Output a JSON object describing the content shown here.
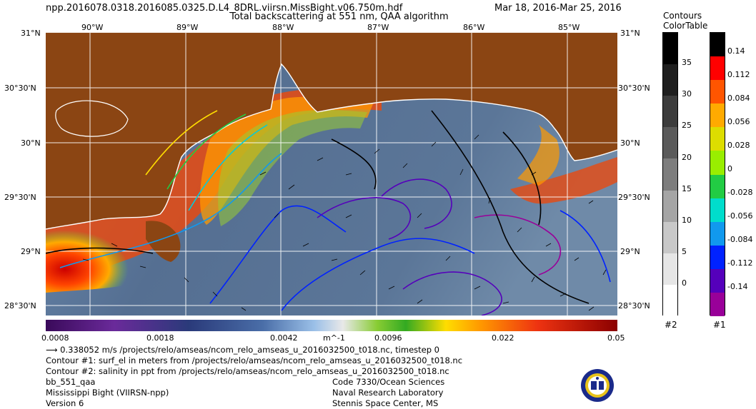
{
  "header": {
    "filename": "npp.2016078.0318.2016085.0325.D.L4_8DRL.viirsn.MissBight.v06.750m.hdf",
    "date_range": "Mar 18, 2016-Mar 25, 2016",
    "product": "Total backscattering at 551 nm, QAA algorithm"
  },
  "axes": {
    "lon_labels": [
      "90°W",
      "89°W",
      "88°W",
      "87°W",
      "86°W",
      "85°W"
    ],
    "lat_labels": [
      "31°N",
      "30°30'N",
      "30°N",
      "29°30'N",
      "29°N",
      "28°30'N"
    ]
  },
  "main_colorbar": {
    "labels": [
      "0.0008",
      "0.0018",
      "0.0042",
      "m^-1",
      "0.0096",
      "0.022",
      "0.05"
    ]
  },
  "contour_colorbars": {
    "title_line1": "Contours",
    "title_line2": "ColorTable",
    "bar2": {
      "labels": [
        "35",
        "30",
        "25",
        "20",
        "15",
        "10",
        "5",
        "0"
      ],
      "footer": "#2",
      "colors": [
        "#000000",
        "#1e1e1e",
        "#3c3c3c",
        "#5a5a5a",
        "#7d7d7d",
        "#a5a5a5",
        "#c8c8c8",
        "#e6e6e6",
        "#ffffff"
      ]
    },
    "bar1": {
      "labels": [
        "0.14",
        "0.112",
        "0.084",
        "0.056",
        "0.028",
        "0",
        "-0.028",
        "-0.056",
        "-0.084",
        "-0.112",
        "-0.14"
      ],
      "footer": "#1",
      "colors": [
        "#000000",
        "#ff0000",
        "#ff5500",
        "#ffaa00",
        "#dddd00",
        "#99ee00",
        "#22cc44",
        "#00ddcc",
        "#1199ee",
        "#0022ff",
        "#5500bb",
        "#990099"
      ]
    }
  },
  "info": {
    "vector_line": "0.338052 m/s /projects/relo/amseas/ncom_relo_amseas_u_2016032500_t018.nc, timestep 0",
    "contour1": "Contour #1: surf_el in meters from /projects/relo/amseas/ncom_relo_amseas_u_2016032500_t018.nc",
    "contour2": "Contour #2: salinity in ppt from /projects/relo/amseas/ncom_relo_amseas_u_2016032500_t018.nc",
    "left": [
      "bb_551_qaa",
      "Mississippi Bight (VIIRSN-npp)",
      "Version 6"
    ],
    "right": [
      "Code 7330/Ocean Sciences",
      "Naval Research Laboratory",
      "Stennis Space Center, MS"
    ]
  },
  "colors": {
    "land": "#8b4513",
    "ocean": "#5e7a9c",
    "grid": "#ffffff"
  }
}
